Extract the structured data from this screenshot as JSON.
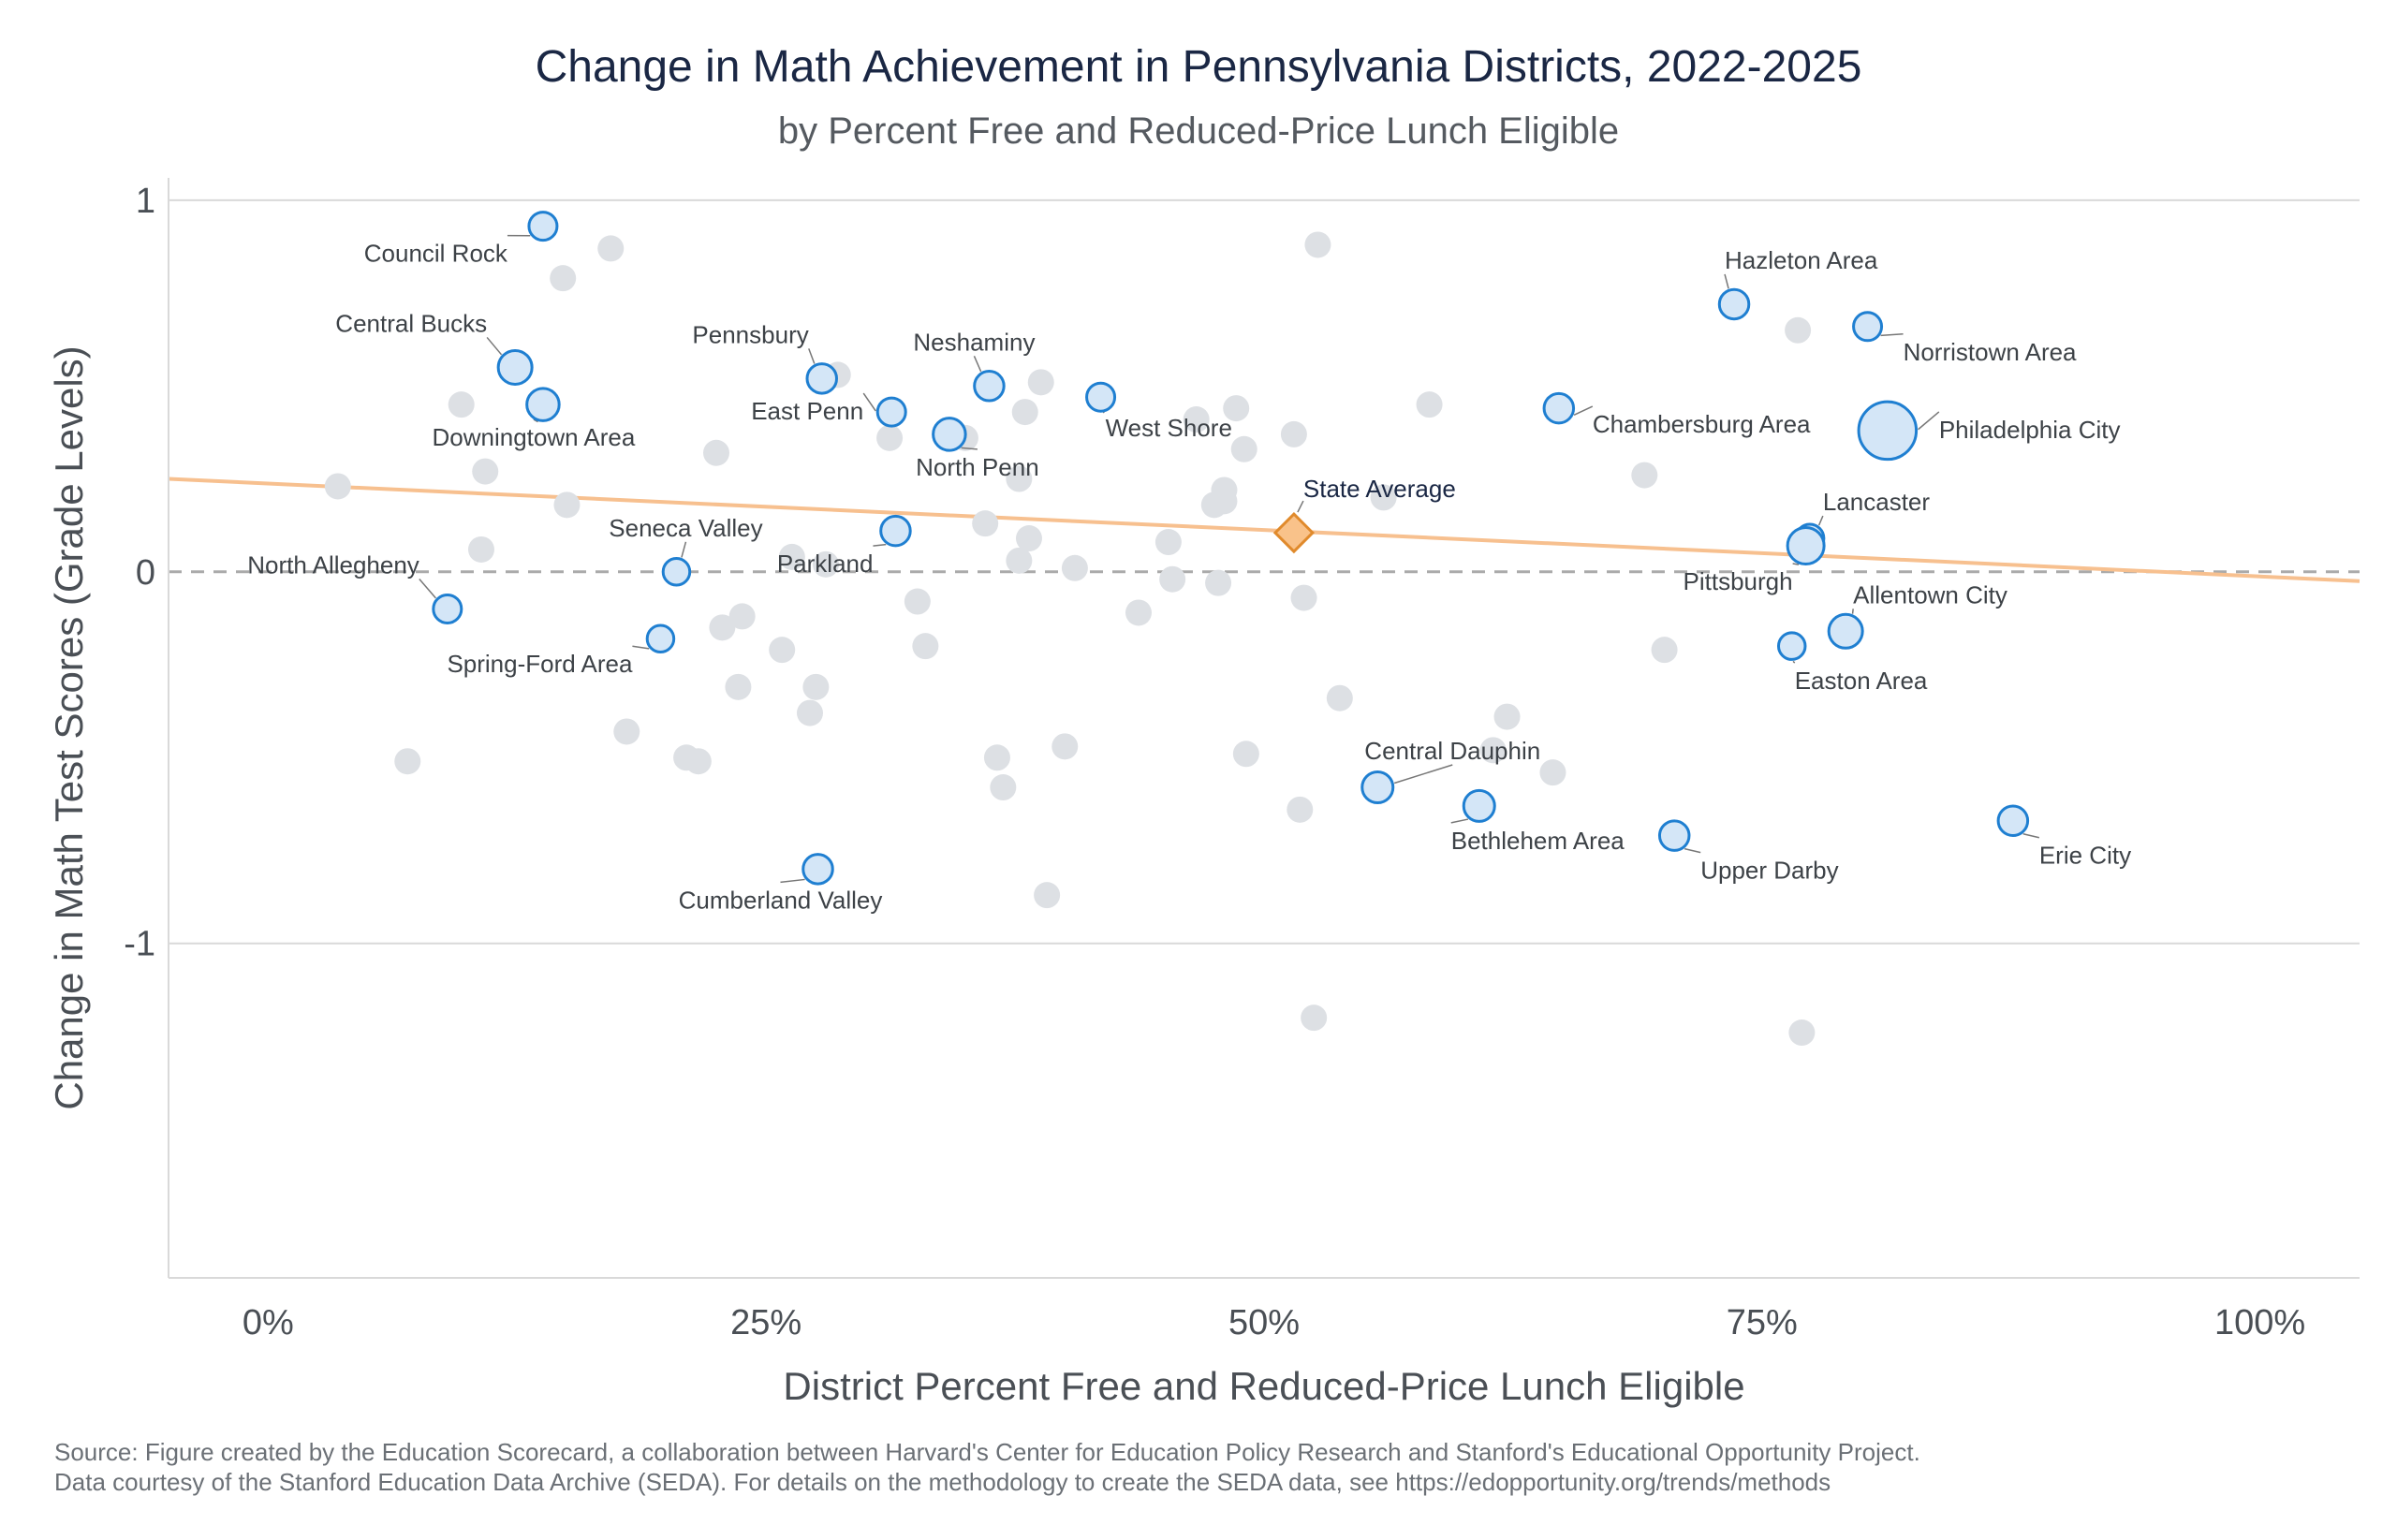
{
  "title": "Change in Math Achievement in Pennsylvania Districts, 2022-2025",
  "subtitle": "by Percent Free and Reduced-Price Lunch Eligible",
  "source": [
    "Source: Figure created by the Education Scorecard, a collaboration between Harvard's Center for Education Policy Research and Stanford's Educational Opportunity Project.",
    "Data courtesy of the Stanford Education Data Archive (SEDA). For details on the methodology to create the SEDA data, see https://edopportunity.org/trends/methods"
  ],
  "colors": {
    "highlight_fill": "#d4e6f7",
    "highlight_stroke": "#1f7fd1",
    "background_point": "#dde0e4",
    "trend_line": "#f7c08f",
    "state_average_fill": "#f9c28a",
    "state_average_stroke": "#e08a2c",
    "grid": "#d9d9d9",
    "zero_line": "#aaaaaa"
  },
  "chart_data": {
    "type": "scatter",
    "xlabel": "District Percent Free and Reduced-Price Lunch Eligible",
    "ylabel": "Change in Math Test Scores (Grade Levels)",
    "xlim": [
      -0.05,
      1.05
    ],
    "ylim": [
      -1.9,
      1.06
    ],
    "x_ticks": [
      0,
      0.25,
      0.5,
      0.75,
      1.0
    ],
    "x_tick_labels": [
      "0%",
      "25%",
      "50%",
      "75%",
      "100%"
    ],
    "y_ticks": [
      1,
      0,
      -1
    ],
    "y_tick_labels": [
      "1",
      "0",
      "-1"
    ],
    "grid": "horizontal",
    "zero_line": "dashed",
    "trend_line": {
      "x": [
        -0.05,
        1.05
      ],
      "y": [
        0.25,
        -0.025
      ]
    },
    "state_average": {
      "label": "State Average",
      "x": 0.515,
      "y": 0.105
    },
    "labeled_districts": [
      {
        "name": "Council Rock",
        "x": 0.138,
        "y": 0.93,
        "size": 1.0
      },
      {
        "name": "Central Bucks",
        "x": 0.124,
        "y": 0.55,
        "size": 1.2
      },
      {
        "name": "Downingtown Area",
        "x": 0.138,
        "y": 0.45,
        "size": 1.15
      },
      {
        "name": "North Allegheny",
        "x": 0.09,
        "y": -0.1,
        "size": 1.0
      },
      {
        "name": "Seneca Valley",
        "x": 0.205,
        "y": 0.0,
        "size": 0.95
      },
      {
        "name": "Spring-Ford Area",
        "x": 0.197,
        "y": -0.18,
        "size": 0.95
      },
      {
        "name": "Pennsbury",
        "x": 0.278,
        "y": 0.52,
        "size": 1.05
      },
      {
        "name": "East Penn",
        "x": 0.313,
        "y": 0.43,
        "size": 1.0
      },
      {
        "name": "Neshaminy",
        "x": 0.362,
        "y": 0.5,
        "size": 1.05
      },
      {
        "name": "North Penn",
        "x": 0.342,
        "y": 0.37,
        "size": 1.15
      },
      {
        "name": "Parkland",
        "x": 0.315,
        "y": 0.11,
        "size": 1.05
      },
      {
        "name": "West Shore",
        "x": 0.418,
        "y": 0.47,
        "size": 1.0
      },
      {
        "name": "Cumberland Valley",
        "x": 0.276,
        "y": -0.8,
        "size": 1.05
      },
      {
        "name": "Hazleton Area",
        "x": 0.736,
        "y": 0.72,
        "size": 1.05
      },
      {
        "name": "Norristown Area",
        "x": 0.803,
        "y": 0.66,
        "size": 1.0
      },
      {
        "name": "Chambersburg Area",
        "x": 0.648,
        "y": 0.44,
        "size": 1.05
      },
      {
        "name": "Philadelphia City",
        "x": 0.813,
        "y": 0.38,
        "size": 2.05
      },
      {
        "name": "Lancaster",
        "x": 0.774,
        "y": 0.09,
        "size": 1.0
      },
      {
        "name": "Pittsburgh",
        "x": 0.772,
        "y": 0.07,
        "size": 1.3
      },
      {
        "name": "Allentown City",
        "x": 0.792,
        "y": -0.16,
        "size": 1.2
      },
      {
        "name": "Easton Area",
        "x": 0.765,
        "y": -0.2,
        "size": 0.95
      },
      {
        "name": "Central Dauphin",
        "x": 0.557,
        "y": -0.58,
        "size": 1.1
      },
      {
        "name": "Bethlehem Area",
        "x": 0.608,
        "y": -0.63,
        "size": 1.1
      },
      {
        "name": "Upper Darby",
        "x": 0.706,
        "y": -0.71,
        "size": 1.05
      },
      {
        "name": "Erie City",
        "x": 0.876,
        "y": -0.67,
        "size": 1.05
      }
    ],
    "other_districts": [
      [
        0.172,
        0.87
      ],
      [
        0.148,
        0.79
      ],
      [
        0.097,
        0.45
      ],
      [
        0.109,
        0.27
      ],
      [
        0.035,
        0.23
      ],
      [
        0.15,
        0.18
      ],
      [
        0.107,
        0.06
      ],
      [
        0.225,
        0.32
      ],
      [
        0.07,
        -0.51
      ],
      [
        0.18,
        -0.43
      ],
      [
        0.21,
        -0.5
      ],
      [
        0.216,
        -0.51
      ],
      [
        0.228,
        -0.15
      ],
      [
        0.238,
        -0.12
      ],
      [
        0.236,
        -0.31
      ],
      [
        0.258,
        -0.21
      ],
      [
        0.263,
        0.04
      ],
      [
        0.272,
        -0.38
      ],
      [
        0.275,
        -0.31
      ],
      [
        0.28,
        0.02
      ],
      [
        0.286,
        0.53
      ],
      [
        0.312,
        0.36
      ],
      [
        0.326,
        -0.08
      ],
      [
        0.33,
        -0.2
      ],
      [
        0.35,
        0.36
      ],
      [
        0.36,
        0.13
      ],
      [
        0.366,
        -0.5
      ],
      [
        0.369,
        -0.58
      ],
      [
        0.377,
        0.03
      ],
      [
        0.377,
        0.25
      ],
      [
        0.38,
        0.43
      ],
      [
        0.382,
        0.09
      ],
      [
        0.388,
        0.51
      ],
      [
        0.391,
        -0.87
      ],
      [
        0.4,
        -0.47
      ],
      [
        0.405,
        0.01
      ],
      [
        0.437,
        -0.11
      ],
      [
        0.452,
        0.08
      ],
      [
        0.454,
        -0.02
      ],
      [
        0.466,
        0.41
      ],
      [
        0.475,
        0.18
      ],
      [
        0.477,
        -0.03
      ],
      [
        0.48,
        0.19
      ],
      [
        0.48,
        0.22
      ],
      [
        0.486,
        0.44
      ],
      [
        0.49,
        0.33
      ],
      [
        0.491,
        -0.49
      ],
      [
        0.515,
        0.37
      ],
      [
        0.518,
        -0.64
      ],
      [
        0.52,
        -0.07
      ],
      [
        0.525,
        -1.2
      ],
      [
        0.527,
        0.88
      ],
      [
        0.538,
        -0.34
      ],
      [
        0.56,
        0.2
      ],
      [
        0.583,
        0.45
      ],
      [
        0.615,
        -0.48
      ],
      [
        0.622,
        -0.39
      ],
      [
        0.645,
        -0.54
      ],
      [
        0.691,
        0.26
      ],
      [
        0.701,
        -0.21
      ],
      [
        0.768,
        0.65
      ],
      [
        0.77,
        -1.24
      ]
    ]
  }
}
